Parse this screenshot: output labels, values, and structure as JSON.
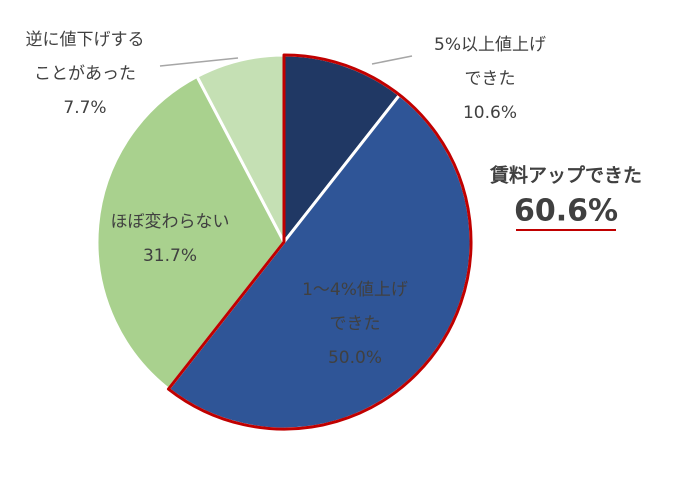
{
  "chart_data": {
    "type": "pie",
    "categories": [
      [
        "5%以上値上げ",
        "できた"
      ],
      [
        "1～4%値上げ",
        "できた"
      ],
      [
        "ほぼ変わらない"
      ],
      [
        "逆に値下げする",
        "ことがあった"
      ]
    ],
    "values": [
      10.6,
      50.0,
      31.7,
      7.7
    ],
    "value_labels": [
      "10.6%",
      "50.0%",
      "31.7%",
      "7.7%"
    ],
    "colors": [
      "#203864",
      "#2f5597",
      "#a9d18e",
      "#c5e0b4"
    ],
    "highlight": {
      "slices": [
        0,
        1
      ],
      "color": "#c00000"
    },
    "annotation": {
      "text": "賃料アップできた",
      "value_label": "60.6%"
    }
  }
}
